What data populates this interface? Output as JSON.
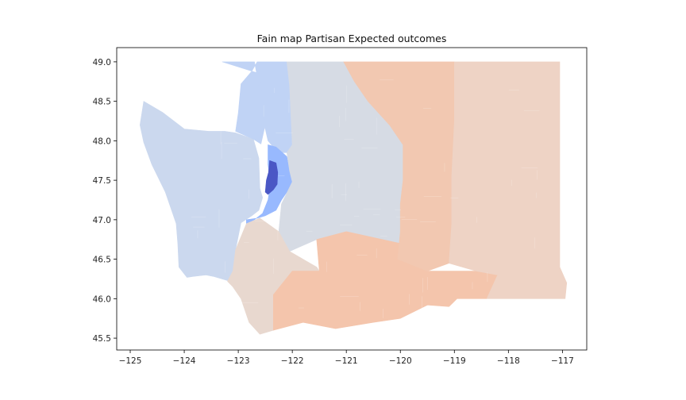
{
  "chart_data": {
    "type": "choropleth-map",
    "title": "Fain map Partisan Expected outcomes",
    "xlabel": "",
    "ylabel": "",
    "xlim": [
      -125.25,
      -116.55
    ],
    "ylim": [
      45.35,
      49.18
    ],
    "x_ticks": [
      -125,
      -124,
      -123,
      -122,
      -121,
      -120,
      -119,
      -118,
      -117
    ],
    "y_ticks": [
      45.5,
      46.0,
      46.5,
      47.0,
      47.5,
      48.0,
      48.5,
      49.0
    ],
    "x_tick_labels": [
      "−125",
      "−124",
      "−123",
      "−122",
      "−121",
      "−120",
      "−119",
      "−118",
      "−117"
    ],
    "y_tick_labels": [
      "45.5",
      "46.0",
      "46.5",
      "47.0",
      "47.5",
      "48.0",
      "48.5",
      "49.0"
    ],
    "colormap": "coolwarm",
    "grid": false,
    "legend": "none",
    "regions": [
      {
        "id": "west",
        "color": "#cbd8ee",
        "outline": [
          [
            -124.75,
            48.5
          ],
          [
            -124.4,
            48.36
          ],
          [
            -124.0,
            48.15
          ],
          [
            -123.55,
            48.12
          ],
          [
            -123.25,
            48.12
          ],
          [
            -123.05,
            48.1
          ],
          [
            -122.72,
            48.02
          ],
          [
            -122.62,
            47.78
          ],
          [
            -122.6,
            47.4
          ],
          [
            -122.55,
            47.28
          ],
          [
            -122.62,
            47.12
          ],
          [
            -122.75,
            47.05
          ],
          [
            -122.95,
            46.96
          ],
          [
            -123.05,
            46.62
          ],
          [
            -123.1,
            46.35
          ],
          [
            -123.15,
            46.22
          ],
          [
            -123.45,
            46.28
          ],
          [
            -123.6,
            46.3
          ],
          [
            -123.85,
            46.28
          ],
          [
            -123.95,
            46.27
          ],
          [
            -124.1,
            46.4
          ],
          [
            -124.12,
            46.7
          ],
          [
            -124.15,
            46.95
          ],
          [
            -124.35,
            47.35
          ],
          [
            -124.6,
            47.7
          ],
          [
            -124.75,
            47.98
          ],
          [
            -124.82,
            48.2
          ],
          [
            -124.75,
            48.5
          ]
        ]
      },
      {
        "id": "north",
        "color": "#c0d3f5",
        "outline": [
          [
            -123.3,
            49.0
          ],
          [
            -122.7,
            49.0
          ],
          [
            -122.62,
            48.7
          ],
          [
            -122.55,
            48.3
          ],
          [
            -122.45,
            48.0
          ],
          [
            -122.35,
            47.92
          ],
          [
            -122.2,
            47.85
          ],
          [
            -122.1,
            47.85
          ],
          [
            -122.0,
            47.95
          ],
          [
            -122.05,
            48.7
          ],
          [
            -122.1,
            49.0
          ],
          [
            -122.65,
            49.0
          ],
          [
            -122.75,
            48.88
          ],
          [
            -122.95,
            48.72
          ],
          [
            -123.0,
            48.35
          ],
          [
            -123.05,
            48.12
          ],
          [
            -122.72,
            48.02
          ],
          [
            -122.58,
            47.96
          ],
          [
            -122.5,
            48.2
          ],
          [
            -122.6,
            48.85
          ],
          [
            -123.3,
            49.0
          ]
        ]
      },
      {
        "id": "king",
        "color": "#98b9fe",
        "outline": [
          [
            -122.45,
            47.95
          ],
          [
            -122.3,
            47.92
          ],
          [
            -122.1,
            47.8
          ],
          [
            -122.05,
            47.62
          ],
          [
            -121.95,
            47.48
          ],
          [
            -122.05,
            47.4
          ],
          [
            -122.2,
            47.25
          ],
          [
            -122.3,
            47.12
          ],
          [
            -122.5,
            47.05
          ],
          [
            -122.65,
            47.02
          ],
          [
            -122.85,
            47.0
          ],
          [
            -122.85,
            46.95
          ],
          [
            -122.7,
            47.0
          ],
          [
            -122.55,
            47.08
          ],
          [
            -122.45,
            47.25
          ],
          [
            -122.4,
            47.45
          ],
          [
            -122.45,
            47.7
          ],
          [
            -122.45,
            47.95
          ]
        ]
      },
      {
        "id": "seattle",
        "color": "#4a57c5",
        "outline": [
          [
            -122.42,
            47.75
          ],
          [
            -122.3,
            47.72
          ],
          [
            -122.27,
            47.6
          ],
          [
            -122.28,
            47.45
          ],
          [
            -122.35,
            47.38
          ],
          [
            -122.45,
            47.32
          ],
          [
            -122.5,
            47.35
          ],
          [
            -122.48,
            47.5
          ],
          [
            -122.44,
            47.6
          ],
          [
            -122.42,
            47.75
          ]
        ]
      },
      {
        "id": "central",
        "color": "#d6dbe4",
        "outline": [
          [
            -122.1,
            49.0
          ],
          [
            -121.05,
            49.0
          ],
          [
            -120.85,
            48.75
          ],
          [
            -120.6,
            48.5
          ],
          [
            -120.2,
            48.2
          ],
          [
            -119.95,
            47.95
          ],
          [
            -119.95,
            47.5
          ],
          [
            -120.0,
            47.2
          ],
          [
            -120.0,
            46.85
          ],
          [
            -120.0,
            46.7
          ],
          [
            -121.0,
            46.85
          ],
          [
            -121.55,
            46.75
          ],
          [
            -122.05,
            46.6
          ],
          [
            -122.25,
            46.85
          ],
          [
            -122.2,
            47.2
          ],
          [
            -122.0,
            47.48
          ],
          [
            -122.05,
            47.62
          ],
          [
            -122.1,
            47.85
          ],
          [
            -122.0,
            47.95
          ],
          [
            -122.05,
            48.7
          ],
          [
            -122.1,
            49.0
          ]
        ]
      },
      {
        "id": "southwest",
        "color": "#e8d8cf",
        "outline": [
          [
            -123.05,
            46.62
          ],
          [
            -122.85,
            46.95
          ],
          [
            -122.6,
            47.02
          ],
          [
            -122.25,
            46.85
          ],
          [
            -122.05,
            46.6
          ],
          [
            -121.55,
            46.4
          ],
          [
            -121.5,
            46.35
          ],
          [
            -122.0,
            46.35
          ],
          [
            -122.35,
            46.05
          ],
          [
            -122.35,
            45.6
          ],
          [
            -122.6,
            45.55
          ],
          [
            -122.8,
            45.7
          ],
          [
            -122.95,
            46.0
          ],
          [
            -123.1,
            46.15
          ],
          [
            -123.2,
            46.22
          ],
          [
            -123.1,
            46.35
          ],
          [
            -123.05,
            46.62
          ]
        ]
      },
      {
        "id": "south-central",
        "color": "#f4c5ac",
        "outline": [
          [
            -122.0,
            46.35
          ],
          [
            -121.5,
            46.35
          ],
          [
            -121.55,
            46.75
          ],
          [
            -121.0,
            46.85
          ],
          [
            -120.0,
            46.7
          ],
          [
            -120.05,
            46.5
          ],
          [
            -119.5,
            46.35
          ],
          [
            -118.6,
            46.35
          ],
          [
            -118.2,
            46.3
          ],
          [
            -118.4,
            46.0
          ],
          [
            -118.95,
            46.0
          ],
          [
            -119.1,
            45.9
          ],
          [
            -119.5,
            45.92
          ],
          [
            -120.0,
            45.75
          ],
          [
            -120.5,
            45.7
          ],
          [
            -121.2,
            45.62
          ],
          [
            -121.8,
            45.7
          ],
          [
            -122.35,
            45.6
          ],
          [
            -122.35,
            46.05
          ],
          [
            -122.0,
            46.35
          ]
        ]
      },
      {
        "id": "east-central",
        "color": "#f2c8b1",
        "outline": [
          [
            -121.05,
            49.0
          ],
          [
            -119.0,
            49.0
          ],
          [
            -119.0,
            48.25
          ],
          [
            -119.05,
            47.55
          ],
          [
            -119.05,
            46.95
          ],
          [
            -119.1,
            46.45
          ],
          [
            -119.5,
            46.35
          ],
          [
            -120.05,
            46.5
          ],
          [
            -120.0,
            46.85
          ],
          [
            -120.0,
            47.2
          ],
          [
            -119.95,
            47.5
          ],
          [
            -119.95,
            47.95
          ],
          [
            -120.2,
            48.2
          ],
          [
            -120.6,
            48.5
          ],
          [
            -120.85,
            48.75
          ],
          [
            -121.05,
            49.0
          ]
        ]
      },
      {
        "id": "east",
        "color": "#eed3c5",
        "outline": [
          [
            -119.0,
            49.0
          ],
          [
            -117.05,
            49.0
          ],
          [
            -117.05,
            46.4
          ],
          [
            -116.92,
            46.2
          ],
          [
            -116.95,
            46.0
          ],
          [
            -118.4,
            46.0
          ],
          [
            -118.2,
            46.3
          ],
          [
            -118.6,
            46.35
          ],
          [
            -119.1,
            46.45
          ],
          [
            -119.05,
            46.95
          ],
          [
            -119.05,
            47.55
          ],
          [
            -119.0,
            48.25
          ],
          [
            -119.0,
            49.0
          ]
        ]
      }
    ]
  }
}
